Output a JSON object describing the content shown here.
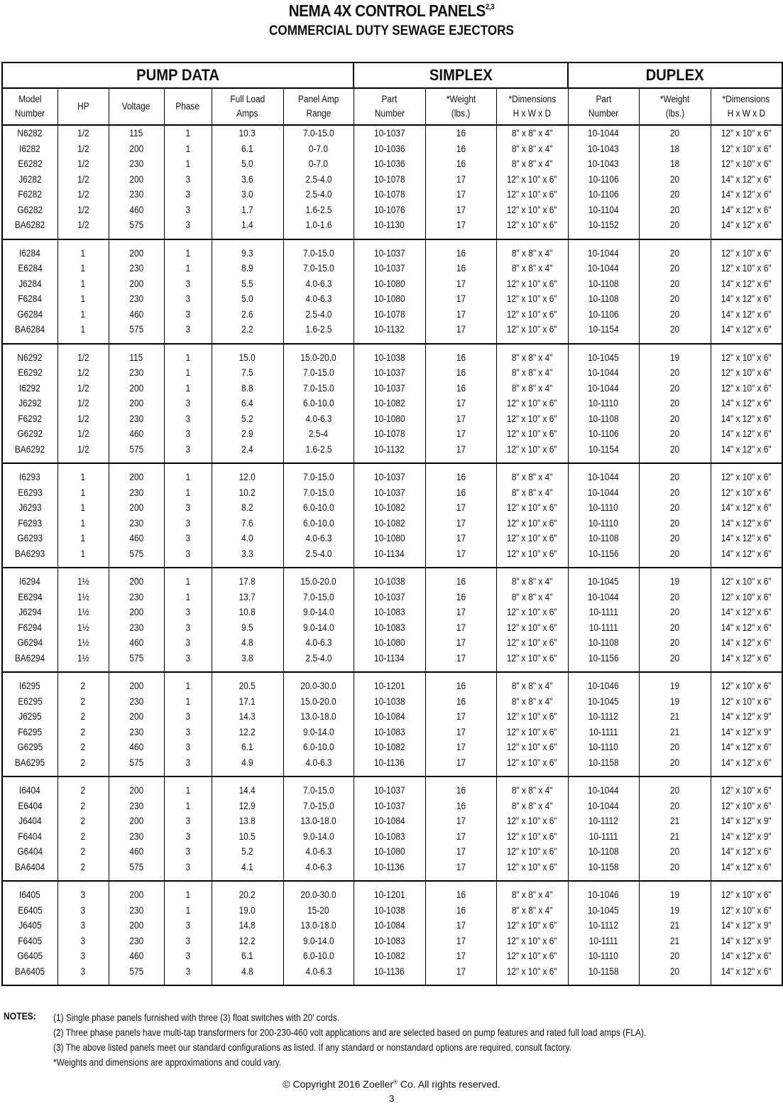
{
  "title": "NEMA 4X CONTROL PANELS",
  "title_sup": "2,3",
  "subtitle": "COMMERCIAL DUTY SEWAGE EJECTORS",
  "group_headers": [
    "PUMP DATA",
    "SIMPLEX",
    "DUPLEX"
  ],
  "column_headers": [
    [
      "Model",
      "Number"
    ],
    [
      "HP"
    ],
    [
      "Voltage"
    ],
    [
      "Phase"
    ],
    [
      "Full Load",
      "Amps"
    ],
    [
      "Panel Amp",
      "Range"
    ],
    [
      "Part",
      "Number"
    ],
    [
      "*Weight",
      "(lbs.)"
    ],
    [
      "*Dimensions",
      "H x W x D"
    ],
    [
      "Part",
      "Number"
    ],
    [
      "*Weight",
      "(lbs.)"
    ],
    [
      "*Dimensions",
      "H x W x D"
    ]
  ],
  "groups": [
    [
      [
        "N6282",
        "1/2",
        "115",
        "1",
        "10.3",
        "7.0-15.0",
        "10-1037",
        "16",
        "8\" x 8\" x 4\"",
        "10-1044",
        "20",
        "12\" x 10\" x 6\""
      ],
      [
        "I6282",
        "1/2",
        "200",
        "1",
        "6.1",
        "0-7.0",
        "10-1036",
        "16",
        "8\" x 8\" x 4\"",
        "10-1043",
        "18",
        "12\" x 10\" x 6\""
      ],
      [
        "E6282",
        "1/2",
        "230",
        "1",
        "5.0",
        "0-7.0",
        "10-1036",
        "16",
        "8\" x 8\" x 4\"",
        "10-1043",
        "18",
        "12\" x 10\" x 6\""
      ],
      [
        "J6282",
        "1/2",
        "200",
        "3",
        "3.6",
        "2.5-4.0",
        "10-1078",
        "17",
        "12\" x 10\" x 6\"",
        "10-1106",
        "20",
        "14\" x 12\" x 6\""
      ],
      [
        "F6282",
        "1/2",
        "230",
        "3",
        "3.0",
        "2.5-4.0",
        "10-1078",
        "17",
        "12\" x 10\" x 6\"",
        "10-1106",
        "20",
        "14\" x 12\" x 6\""
      ],
      [
        "G6282",
        "1/2",
        "460",
        "3",
        "1.7",
        "1.6-2.5",
        "10-1076",
        "17",
        "12\" x 10\" x 6\"",
        "10-1104",
        "20",
        "14\" x 12\" x 6\""
      ],
      [
        "BA6282",
        "1/2",
        "575",
        "3",
        "1.4",
        "1.0-1.6",
        "10-1130",
        "17",
        "12\" x 10\" x 6\"",
        "10-1152",
        "20",
        "14\" x 12\" x 6\""
      ]
    ],
    [
      [
        "I6284",
        "1",
        "200",
        "1",
        "9.3",
        "7.0-15.0",
        "10-1037",
        "16",
        "8\" x 8\" x 4\"",
        "10-1044",
        "20",
        "12\" x 10\" x 6\""
      ],
      [
        "E6284",
        "1",
        "230",
        "1",
        "8.9",
        "7.0-15.0",
        "10-1037",
        "16",
        "8\" x 8\" x 4\"",
        "10-1044",
        "20",
        "12\" x 10\" x 6\""
      ],
      [
        "J6284",
        "1",
        "200",
        "3",
        "5.5",
        "4.0-6.3",
        "10-1080",
        "17",
        "12\" x 10\" x 6\"",
        "10-1108",
        "20",
        "14\" x 12\" x 6\""
      ],
      [
        "F6284",
        "1",
        "230",
        "3",
        "5.0",
        "4.0-6.3",
        "10-1080",
        "17",
        "12\" x 10\" x 6\"",
        "10-1108",
        "20",
        "14\" x 12\" x 6\""
      ],
      [
        "G6284",
        "1",
        "460",
        "3",
        "2.6",
        "2.5-4.0",
        "10-1078",
        "17",
        "12\" x 10\" x 6\"",
        "10-1106",
        "20",
        "14\" x 12\" x 6\""
      ],
      [
        "BA6284",
        "1",
        "575",
        "3",
        "2.2",
        "1.6-2.5",
        "10-1132",
        "17",
        "12\" x 10\" x 6\"",
        "10-1154",
        "20",
        "14\" x 12\" x 6\""
      ]
    ],
    [
      [
        "N6292",
        "1/2",
        "115",
        "1",
        "15.0",
        "15.0-20.0",
        "10-1038",
        "16",
        "8\" x 8\" x 4\"",
        "10-1045",
        "19",
        "12\" x 10\" x 6\""
      ],
      [
        "E6292",
        "1/2",
        "230",
        "1",
        "7.5",
        "7.0-15.0",
        "10-1037",
        "16",
        "8\" x 8\" x 4\"",
        "10-1044",
        "20",
        "12\" x 10\" x 6\""
      ],
      [
        "I6292",
        "1/2",
        "200",
        "1",
        "8.8",
        "7.0-15.0",
        "10-1037",
        "16",
        "8\" x 8\" x 4\"",
        "10-1044",
        "20",
        "12\" x 10\" x 6\""
      ],
      [
        "J6292",
        "1/2",
        "200",
        "3",
        "6.4",
        "6.0-10.0",
        "10-1082",
        "17",
        "12\" x 10\" x 6\"",
        "10-1110",
        "20",
        "14\" x 12\" x 6\""
      ],
      [
        "F6292",
        "1/2",
        "230",
        "3",
        "5.2",
        "4.0-6.3",
        "10-1080",
        "17",
        "12\" x 10\" x 6\"",
        "10-1108",
        "20",
        "14\" x 12\" x 6\""
      ],
      [
        "G6292",
        "1/2",
        "460",
        "3",
        "2.9",
        "2.5-4",
        "10-1078",
        "17",
        "12\" x 10\" x 6\"",
        "10-1106",
        "20",
        "14\" x 12\" x 6\""
      ],
      [
        "BA6292",
        "1/2",
        "575",
        "3",
        "2.4",
        "1.6-2.5",
        "10-1132",
        "17",
        "12\" x 10\" x 6\"",
        "10-1154",
        "20",
        "14\" x 12\" x 6\""
      ]
    ],
    [
      [
        "I6293",
        "1",
        "200",
        "1",
        "12.0",
        "7.0-15.0",
        "10-1037",
        "16",
        "8\" x 8\" x 4\"",
        "10-1044",
        "20",
        "12\" x 10\" x 6\""
      ],
      [
        "E6293",
        "1",
        "230",
        "1",
        "10.2",
        "7.0-15.0",
        "10-1037",
        "16",
        "8\" x 8\" x 4\"",
        "10-1044",
        "20",
        "12\" x 10\" x 6\""
      ],
      [
        "J6293",
        "1",
        "200",
        "3",
        "8.2",
        "6.0-10.0",
        "10-1082",
        "17",
        "12\" x 10\" x 6\"",
        "10-1110",
        "20",
        "14\" x 12\" x 6\""
      ],
      [
        "F6293",
        "1",
        "230",
        "3",
        "7.6",
        "6.0-10.0",
        "10-1082",
        "17",
        "12\" x 10\" x 6\"",
        "10-1110",
        "20",
        "14\" x 12\" x 6\""
      ],
      [
        "G6293",
        "1",
        "460",
        "3",
        "4.0",
        "4.0-6.3",
        "10-1080",
        "17",
        "12\" x 10\" x 6\"",
        "10-1108",
        "20",
        "14\" x 12\" x 6\""
      ],
      [
        "BA6293",
        "1",
        "575",
        "3",
        "3.3",
        "2.5-4.0",
        "10-1134",
        "17",
        "12\" x 10\" x 6\"",
        "10-1156",
        "20",
        "14\" x 12\" x 6\""
      ]
    ],
    [
      [
        "I6294",
        "1½",
        "200",
        "1",
        "17.8",
        "15.0-20.0",
        "10-1038",
        "16",
        "8\" x 8\" x 4\"",
        "10-1045",
        "19",
        "12\" x 10\" x 6\""
      ],
      [
        "E6294",
        "1½",
        "230",
        "1",
        "13.7",
        "7.0-15.0",
        "10-1037",
        "16",
        "8\" x 8\" x 4\"",
        "10-1044",
        "20",
        "12\" x 10\" x 6\""
      ],
      [
        "J6294",
        "1½",
        "200",
        "3",
        "10.8",
        "9.0-14.0",
        "10-1083",
        "17",
        "12\" x 10\" x 6\"",
        "10-1111",
        "20",
        "14\" x 12\" x 6\""
      ],
      [
        "F6294",
        "1½",
        "230",
        "3",
        "9.5",
        "9.0-14.0",
        "10-1083",
        "17",
        "12\" x 10\" x 6\"",
        "10-1111",
        "20",
        "14\" x 12\" x 6\""
      ],
      [
        "G6294",
        "1½",
        "460",
        "3",
        "4.8",
        "4.0-6.3",
        "10-1080",
        "17",
        "12\" x 10\" x 6\"",
        "10-1108",
        "20",
        "14\" x 12\" x 6\""
      ],
      [
        "BA6294",
        "1½",
        "575",
        "3",
        "3.8",
        "2.5-4.0",
        "10-1134",
        "17",
        "12\" x 10\" x 6\"",
        "10-1156",
        "20",
        "14\" x 12\" x 6\""
      ]
    ],
    [
      [
        "I6295",
        "2",
        "200",
        "1",
        "20.5",
        "20.0-30.0",
        "10-1201",
        "16",
        "8\" x 8\" x 4\"",
        "10-1046",
        "19",
        "12\" x 10\" x 6\""
      ],
      [
        "E6295",
        "2",
        "230",
        "1",
        "17.1",
        "15.0-20.0",
        "10-1038",
        "16",
        "8\" x 8\" x 4\"",
        "10-1045",
        "19",
        "12\" x 10\" x 6\""
      ],
      [
        "J6295",
        "2",
        "200",
        "3",
        "14.3",
        "13.0-18.0",
        "10-1084",
        "17",
        "12\" x 10\" x 6\"",
        "10-1112",
        "21",
        "14\" x 12\" x 9\""
      ],
      [
        "F6295",
        "2",
        "230",
        "3",
        "12.2",
        "9.0-14.0",
        "10-1083",
        "17",
        "12\" x 10\" x 6\"",
        "10-1111",
        "21",
        "14\" x 12\" x 9\""
      ],
      [
        "G6295",
        "2",
        "460",
        "3",
        "6.1",
        "6.0-10.0",
        "10-1082",
        "17",
        "12\" x 10\" x 6\"",
        "10-1110",
        "20",
        "14\" x 12\" x 6\""
      ],
      [
        "BA6295",
        "2",
        "575",
        "3",
        "4.9",
        "4.0-6.3",
        "10-1136",
        "17",
        "12\" x 10\" x 6\"",
        "10-1158",
        "20",
        "14\" x 12\" x 6\""
      ]
    ],
    [
      [
        "I6404",
        "2",
        "200",
        "1",
        "14.4",
        "7.0-15.0",
        "10-1037",
        "16",
        "8\" x 8\" x 4\"",
        "10-1044",
        "20",
        "12\" x 10\" x 6\""
      ],
      [
        "E6404",
        "2",
        "230",
        "1",
        "12.9",
        "7.0-15.0",
        "10-1037",
        "16",
        "8\" x 8\" x 4\"",
        "10-1044",
        "20",
        "12\" x 10\" x 6\""
      ],
      [
        "J6404",
        "2",
        "200",
        "3",
        "13.8",
        "13.0-18.0",
        "10-1084",
        "17",
        "12\" x 10\" x 6\"",
        "10-1112",
        "21",
        "14\" x 12\" x 9\""
      ],
      [
        "F6404",
        "2",
        "230",
        "3",
        "10.5",
        "9.0-14.0",
        "10-1083",
        "17",
        "12\" x 10\" x 6\"",
        "10-1111",
        "21",
        "14\" x 12\" x 9\""
      ],
      [
        "G6404",
        "2",
        "460",
        "3",
        "5.2",
        "4.0-6.3",
        "10-1080",
        "17",
        "12\" x 10\" x 6\"",
        "10-1108",
        "20",
        "14\" x 12\" x 6\""
      ],
      [
        "BA6404",
        "2",
        "575",
        "3",
        "4.1",
        "4.0-6.3",
        "10-1136",
        "17",
        "12\" x 10\" x 6\"",
        "10-1158",
        "20",
        "14\" x 12\" x 6\""
      ]
    ],
    [
      [
        "I6405",
        "3",
        "200",
        "1",
        "20.2",
        "20.0-30.0",
        "10-1201",
        "16",
        "8\" x 8\" x 4\"",
        "10-1046",
        "19",
        "12\" x 10\" x 6\""
      ],
      [
        "E6405",
        "3",
        "230",
        "1",
        "19.0",
        "15-20",
        "10-1038",
        "16",
        "8\" x 8\" x 4\"",
        "10-1045",
        "19",
        "12\" x 10\" x 6\""
      ],
      [
        "J6405",
        "3",
        "200",
        "3",
        "14.8",
        "13.0-18.0",
        "10-1084",
        "17",
        "12\" x 10\" x 6\"",
        "10-1112",
        "21",
        "14\" x 12\" x 9\""
      ],
      [
        "F6405",
        "3",
        "230",
        "3",
        "12.2",
        "9.0-14.0",
        "10-1083",
        "17",
        "12\" x 10\" x 6\"",
        "10-1111",
        "21",
        "14\" x 12\" x 9\""
      ],
      [
        "G6405",
        "3",
        "460",
        "3",
        "6.1",
        "6.0-10.0",
        "10-1082",
        "17",
        "12\" x 10\" x 6\"",
        "10-1110",
        "20",
        "14\" x 12\" x 6\""
      ],
      [
        "BA6405",
        "3",
        "575",
        "3",
        "4.8",
        "4.0-6.3",
        "10-1136",
        "17",
        "12\" x 10\" x 6\"",
        "10-1158",
        "20",
        "14\" x 12\" x 6\""
      ]
    ]
  ],
  "notes": {
    "label": "NOTES:",
    "lines": [
      "(1) Single phase panels furnished with three (3) float switches with 20’ cords.",
      "(2) Three phase panels have multi-tap transformers for 200-230-460 volt applications and are selected based on pump features and rated full load amps (FLA).",
      "(3) The above listed panels meet our standard configurations as listed. If any standard or nonstandard options are required, consult factory.",
      "*Weights and dimensions are approximations and could vary."
    ]
  },
  "footer": {
    "copyright_pre": "© Copyright 2016 Zoeller",
    "copyright_reg": "®",
    "copyright_post": " Co. All rights reserved.",
    "page_number": "3"
  }
}
